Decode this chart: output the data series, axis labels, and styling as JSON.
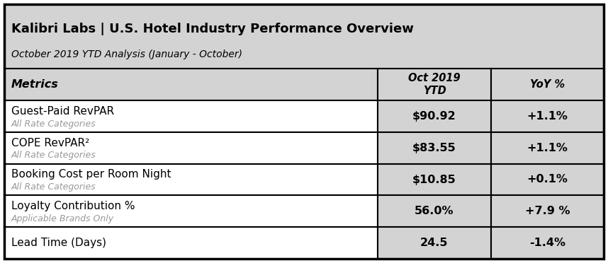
{
  "title": "Kalibri Labs | U.S. Hotel Industry Performance Overview",
  "subtitle": "October 2019 YTD Analysis (January - October)",
  "header_bg": "#d3d3d3",
  "value_col_bg": "#d3d3d3",
  "row_bg_white": "#ffffff",
  "col_headers": [
    "Metrics",
    "Oct 2019\nYTD",
    "YoY %"
  ],
  "rows": [
    {
      "metric": "Guest-Paid RevPAR",
      "sub": "All Rate Categories",
      "value": "$90.92",
      "yoy": "+1.1%"
    },
    {
      "metric": "COPE RevPAR²",
      "sub": "All Rate Categories",
      "value": "$83.55",
      "yoy": "+1.1%"
    },
    {
      "metric": "Booking Cost per Room Night",
      "sub": "All Rate Categories",
      "value": "$10.85",
      "yoy": "+0.1%"
    },
    {
      "metric": "Loyalty Contribution %",
      "sub": "Applicable Brands Only",
      "value": "56.0%",
      "yoy": "+7.9 %"
    },
    {
      "metric": "Lead Time (Days)",
      "sub": "",
      "value": "24.5",
      "yoy": "-1.4%"
    }
  ],
  "border_color": "#000000",
  "text_color_main": "#000000",
  "text_color_sub": "#999999",
  "figsize": [
    8.58,
    3.72
  ],
  "dpi": 100
}
